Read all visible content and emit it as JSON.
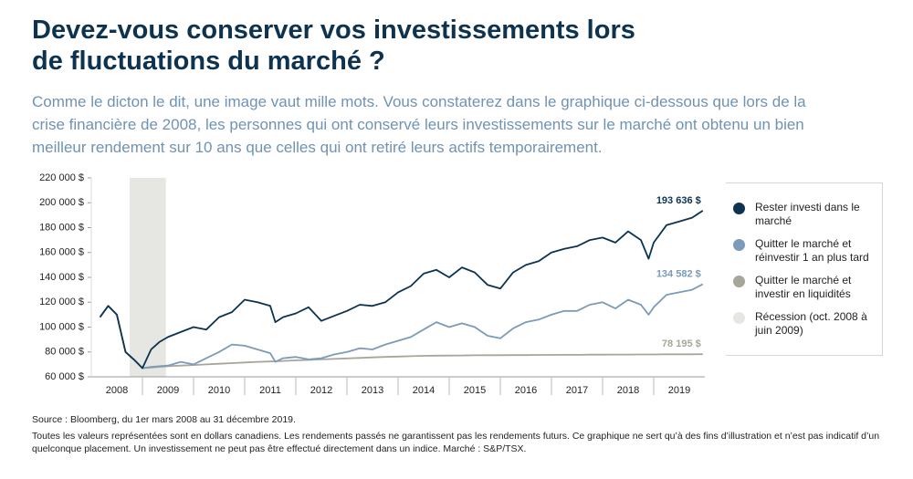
{
  "chart_data": {
    "type": "line",
    "title": "Devez-vous conserver vos investissements lors de fluctuations du marché ?",
    "subtitle": "Comme le dicton le dit, une image vaut mille mots. Vous constaterez dans le graphique ci-dessous que lors de la crise financière de 2008, les personnes qui ont conservé leurs investissements sur le marché ont obtenu un bien meilleur rendement sur 10 ans que celles qui ont retiré leurs actifs temporairement.",
    "x": [
      2008.17,
      2008.33,
      2008.5,
      2008.67,
      2008.83,
      2009.0,
      2009.17,
      2009.33,
      2009.5,
      2009.75,
      2010.0,
      2010.25,
      2010.5,
      2010.75,
      2011.0,
      2011.25,
      2011.5,
      2011.6,
      2011.75,
      2012.0,
      2012.25,
      2012.5,
      2012.75,
      2013.0,
      2013.25,
      2013.5,
      2013.75,
      2014.0,
      2014.25,
      2014.5,
      2014.75,
      2015.0,
      2015.25,
      2015.5,
      2015.75,
      2016.0,
      2016.25,
      2016.5,
      2016.75,
      2017.0,
      2017.25,
      2017.5,
      2017.75,
      2018.0,
      2018.25,
      2018.5,
      2018.75,
      2018.9,
      2019.0,
      2019.25,
      2019.5,
      2019.75,
      2019.96
    ],
    "series": [
      {
        "name": "Rester investi dans le marché",
        "color": "#0e3350",
        "value_label": "193 636 $",
        "values": [
          108000,
          117000,
          110000,
          80000,
          74000,
          67000,
          82000,
          88000,
          92000,
          96000,
          100000,
          98000,
          108000,
          112000,
          122000,
          120000,
          117000,
          104000,
          108000,
          111000,
          116000,
          105000,
          109000,
          113000,
          118000,
          117000,
          120000,
          128000,
          133000,
          143000,
          146000,
          140000,
          148000,
          144000,
          134000,
          131000,
          144000,
          150000,
          153000,
          160000,
          163000,
          165000,
          170000,
          172000,
          168000,
          177000,
          170000,
          155000,
          168000,
          182000,
          185000,
          188000,
          193636
        ]
      },
      {
        "name": "Quitter le marché et réinvestir 1 an plus tard",
        "color": "#7b9bb8",
        "value_label": "134 582 $",
        "values": [
          108000,
          117000,
          110000,
          80000,
          74000,
          67000,
          68000,
          68500,
          69000,
          72000,
          70000,
          75000,
          80000,
          86000,
          85000,
          82000,
          79000,
          72000,
          75000,
          76000,
          74000,
          75000,
          78000,
          80000,
          83000,
          82000,
          86000,
          89000,
          92000,
          98000,
          104000,
          100000,
          103000,
          100000,
          93000,
          91000,
          99000,
          104000,
          106000,
          110000,
          113000,
          113000,
          118000,
          120000,
          115000,
          122000,
          118000,
          110000,
          116000,
          126000,
          128000,
          130000,
          134582
        ]
      },
      {
        "name": "Quitter le marché et investir en liquidités",
        "color": "#a6a69a",
        "value_label": "78 195 $",
        "values": [
          108000,
          117000,
          110000,
          80000,
          74000,
          67000,
          67500,
          68000,
          68500,
          69000,
          69500,
          70000,
          70500,
          71000,
          71500,
          72000,
          72300,
          72500,
          72800,
          73200,
          73600,
          74000,
          74400,
          74800,
          75200,
          75600,
          76000,
          76300,
          76600,
          76900,
          77000,
          77100,
          77200,
          77300,
          77400,
          77400,
          77500,
          77500,
          77600,
          77600,
          77700,
          77700,
          77800,
          77800,
          77900,
          77900,
          78000,
          78000,
          78000,
          78100,
          78100,
          78150,
          78195
        ]
      }
    ],
    "recession": {
      "name": "Récession (oct. 2008 à juin 2009)",
      "color": "#e6e6e3",
      "range": [
        2008.75,
        2009.46
      ]
    },
    "xlim": [
      2008,
      2020
    ],
    "xticks": [
      {
        "value": 2008.5,
        "label": "2008"
      },
      {
        "value": 2009.5,
        "label": "2009"
      },
      {
        "value": 2010.5,
        "label": "2010"
      },
      {
        "value": 2011.5,
        "label": "2011"
      },
      {
        "value": 2012.5,
        "label": "2012"
      },
      {
        "value": 2013.5,
        "label": "2013"
      },
      {
        "value": 2014.5,
        "label": "2014"
      },
      {
        "value": 2015.5,
        "label": "2015"
      },
      {
        "value": 2016.5,
        "label": "2016"
      },
      {
        "value": 2017.5,
        "label": "2017"
      },
      {
        "value": 2018.5,
        "label": "2018"
      },
      {
        "value": 2019.5,
        "label": "2019"
      }
    ],
    "ylim": [
      60000,
      220000
    ],
    "yticks": [
      {
        "value": 60000,
        "label": "60 000 $"
      },
      {
        "value": 80000,
        "label": "80 000 $"
      },
      {
        "value": 100000,
        "label": "100 000 $"
      },
      {
        "value": 120000,
        "label": "120 000 $"
      },
      {
        "value": 140000,
        "label": "140 000 $"
      },
      {
        "value": 160000,
        "label": "160 000 $"
      },
      {
        "value": 180000,
        "label": "180 000 $"
      },
      {
        "value": 200000,
        "label": "200 000 $"
      },
      {
        "value": 220000,
        "label": "220 000 $"
      }
    ],
    "grid": false,
    "legend": "right",
    "notes": [
      "Source : Bloomberg, du 1er mars 2008 au 31 décembre 2019.",
      "Toutes les valeurs représentées sont en dollars canadiens. Les rendements passés ne garantissent pas les rendements futurs. Ce graphique ne sert qu’à des fins d’illustration et n’est pas indicatif d’un quelconque placement. Un investissement ne peut pas être effectué directement dans un indice. Marché : S&P/TSX."
    ]
  }
}
